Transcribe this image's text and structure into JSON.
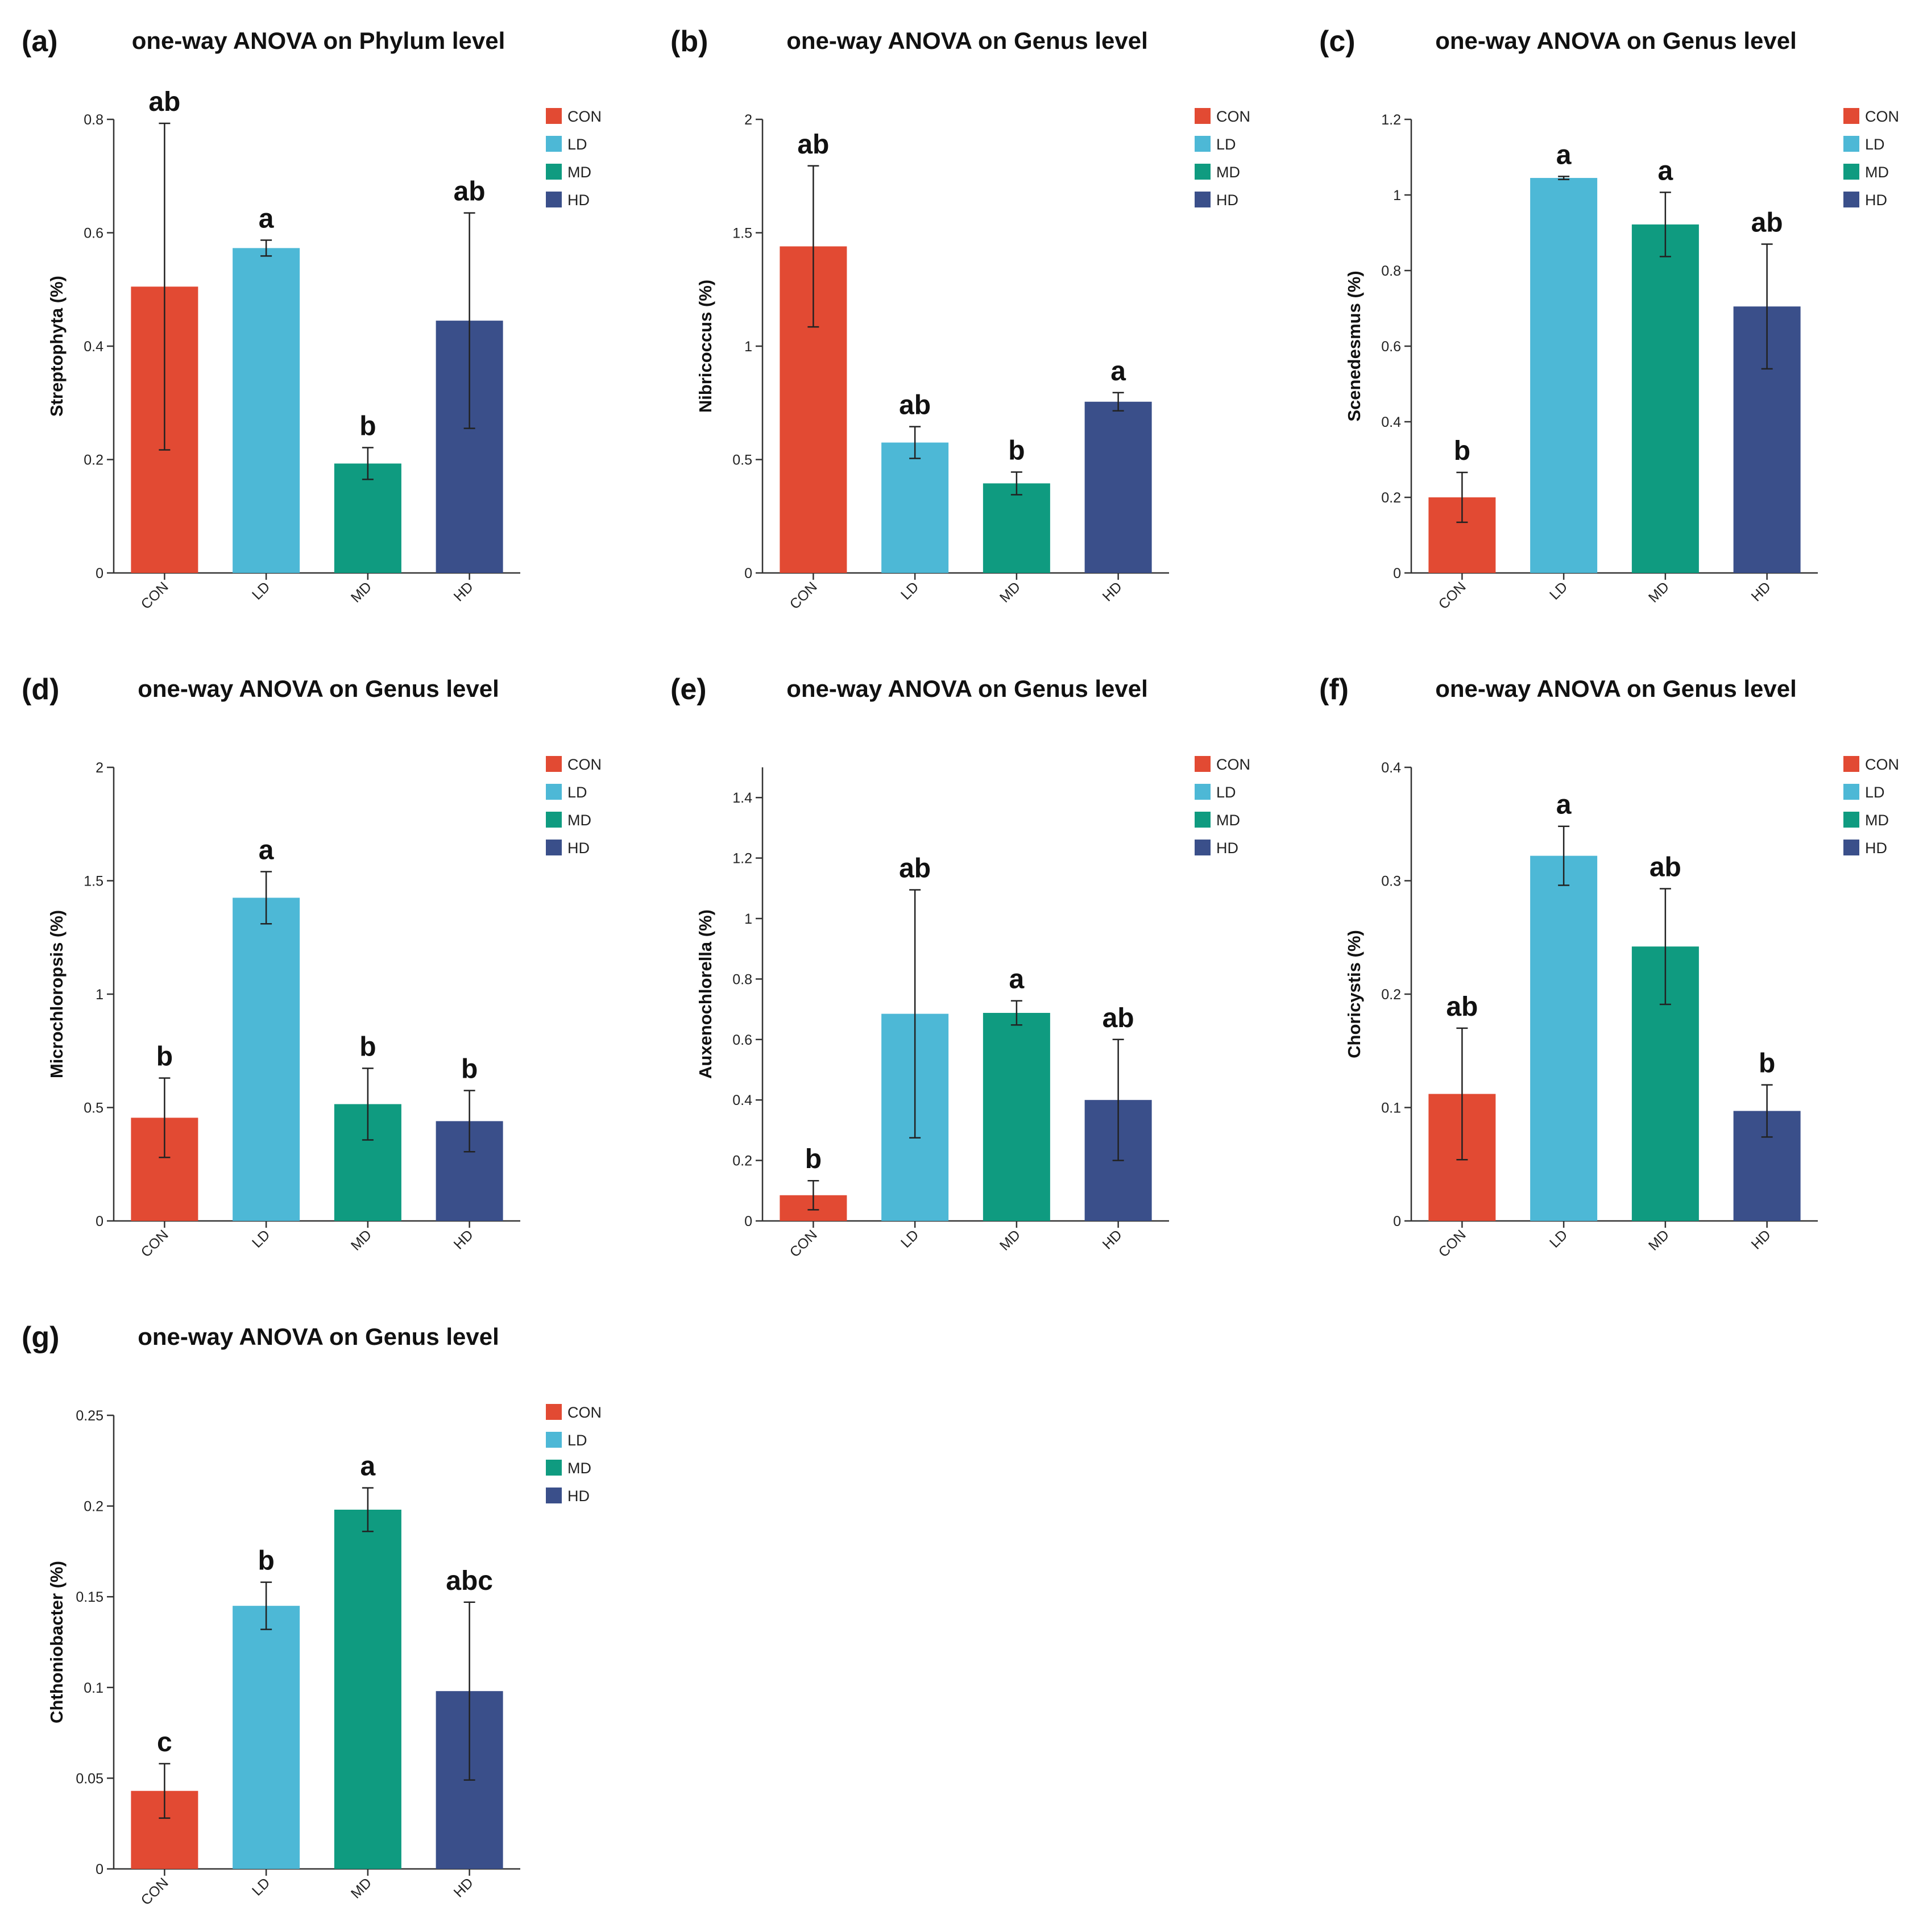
{
  "colors": {
    "CON": "#e24a33",
    "LD": "#4db8d6",
    "MD": "#0f9b80",
    "HD": "#3a4f8a"
  },
  "chart_data": [
    {
      "type": "bar",
      "panel": "(a)",
      "title": "one-way ANOVA on Phylum level",
      "ylabel": "Streptophyta (%)",
      "xlabel": "",
      "categories": [
        "CON",
        "LD",
        "MD",
        "HD"
      ],
      "values": [
        0.505,
        0.573,
        0.193,
        0.445
      ],
      "errors": [
        0.288,
        0.014,
        0.028,
        0.19
      ],
      "significance": [
        "ab",
        "a",
        "b",
        "ab"
      ],
      "ylim": [
        0,
        0.8
      ],
      "yticks": [
        0,
        0.2,
        0.4,
        0.6,
        0.8
      ],
      "ytick_labels": [
        "0",
        "0.2",
        "0.4",
        "0.6",
        "0.8"
      ],
      "legend": [
        "CON",
        "LD",
        "MD",
        "HD"
      ],
      "legend_position": "top-right"
    },
    {
      "type": "bar",
      "panel": "(b)",
      "title": "one-way ANOVA on Genus level",
      "ylabel": "Nibricoccus (%)",
      "xlabel": "",
      "categories": [
        "CON",
        "LD",
        "MD",
        "HD"
      ],
      "values": [
        1.44,
        0.575,
        0.395,
        0.755
      ],
      "errors": [
        0.355,
        0.07,
        0.05,
        0.04
      ],
      "significance": [
        "ab",
        "ab",
        "b",
        "a"
      ],
      "ylim": [
        0,
        2
      ],
      "yticks": [
        0,
        0.5,
        1,
        1.5,
        2
      ],
      "ytick_labels": [
        "0",
        "0.5",
        "1",
        "1.5",
        "2"
      ],
      "legend": [
        "CON",
        "LD",
        "MD",
        "HD"
      ],
      "legend_position": "top-right"
    },
    {
      "type": "bar",
      "panel": "(c)",
      "title": "one-way ANOVA on Genus level",
      "ylabel": "Scenedesmus (%)",
      "xlabel": "",
      "categories": [
        "CON",
        "LD",
        "MD",
        "HD"
      ],
      "values": [
        0.2,
        1.045,
        0.922,
        0.705
      ],
      "errors": [
        0.066,
        0.004,
        0.085,
        0.165
      ],
      "significance": [
        "b",
        "a",
        "a",
        "ab"
      ],
      "ylim": [
        0,
        1.2
      ],
      "yticks": [
        0,
        0.2,
        0.4,
        0.6,
        0.8,
        1,
        1.2
      ],
      "ytick_labels": [
        "0",
        "0.2",
        "0.4",
        "0.6",
        "0.8",
        "1",
        "1.2"
      ],
      "legend": [
        "CON",
        "LD",
        "MD",
        "HD"
      ],
      "legend_position": "top-right"
    },
    {
      "type": "bar",
      "panel": "(d)",
      "title": "one-way ANOVA on Genus level",
      "ylabel": "Microchloropsis (%)",
      "xlabel": "",
      "categories": [
        "CON",
        "LD",
        "MD",
        "HD"
      ],
      "values": [
        0.455,
        1.425,
        0.515,
        0.44
      ],
      "errors": [
        0.175,
        0.115,
        0.158,
        0.135
      ],
      "significance": [
        "b",
        "a",
        "b",
        "b"
      ],
      "ylim": [
        0,
        2
      ],
      "yticks": [
        0,
        0.5,
        1,
        1.5,
        2
      ],
      "ytick_labels": [
        "0",
        "0.5",
        "1",
        "1.5",
        "2"
      ],
      "legend": [
        "CON",
        "LD",
        "MD",
        "HD"
      ],
      "legend_position": "top-right"
    },
    {
      "type": "bar",
      "panel": "(e)",
      "title": "one-way ANOVA on Genus level",
      "ylabel": "Auxenochlorella (%)",
      "xlabel": "",
      "categories": [
        "CON",
        "LD",
        "MD",
        "HD"
      ],
      "values": [
        0.085,
        0.685,
        0.688,
        0.4
      ],
      "errors": [
        0.048,
        0.41,
        0.04,
        0.2
      ],
      "significance": [
        "b",
        "ab",
        "a",
        "ab"
      ],
      "ylim": [
        0,
        1.5
      ],
      "yticks": [
        0,
        0.2,
        0.4,
        0.6,
        0.8,
        1,
        1.2,
        1.4
      ],
      "ytick_labels": [
        "0",
        "0.2",
        "0.4",
        "0.6",
        "0.8",
        "1",
        "1.2",
        "1.4"
      ],
      "legend": [
        "CON",
        "LD",
        "MD",
        "HD"
      ],
      "legend_position": "top-right"
    },
    {
      "type": "bar",
      "panel": "(f)",
      "title": "one-way ANOVA on Genus level",
      "ylabel": "Choricystis (%)",
      "xlabel": "",
      "categories": [
        "CON",
        "LD",
        "MD",
        "HD"
      ],
      "values": [
        0.112,
        0.322,
        0.242,
        0.097
      ],
      "errors": [
        0.058,
        0.026,
        0.051,
        0.023
      ],
      "significance": [
        "ab",
        "a",
        "ab",
        "b"
      ],
      "ylim": [
        0,
        0.4
      ],
      "yticks": [
        0,
        0.1,
        0.2,
        0.3,
        0.4
      ],
      "ytick_labels": [
        "0",
        "0.1",
        "0.2",
        "0.3",
        "0.4"
      ],
      "legend": [
        "CON",
        "LD",
        "MD",
        "HD"
      ],
      "legend_position": "top-right"
    },
    {
      "type": "bar",
      "panel": "(g)",
      "title": "one-way ANOVA on Genus level",
      "ylabel": "Chthoniobacter (%)",
      "xlabel": "",
      "categories": [
        "CON",
        "LD",
        "MD",
        "HD"
      ],
      "values": [
        0.043,
        0.145,
        0.198,
        0.098
      ],
      "errors": [
        0.015,
        0.013,
        0.012,
        0.049
      ],
      "significance": [
        "c",
        "b",
        "a",
        "abc"
      ],
      "ylim": [
        0,
        0.25
      ],
      "yticks": [
        0,
        0.05,
        0.1,
        0.15,
        0.2,
        0.25
      ],
      "ytick_labels": [
        "0",
        "0.05",
        "0.1",
        "0.15",
        "0.2",
        "0.25"
      ],
      "legend": [
        "CON",
        "LD",
        "MD",
        "HD"
      ],
      "legend_position": "top-right"
    }
  ]
}
